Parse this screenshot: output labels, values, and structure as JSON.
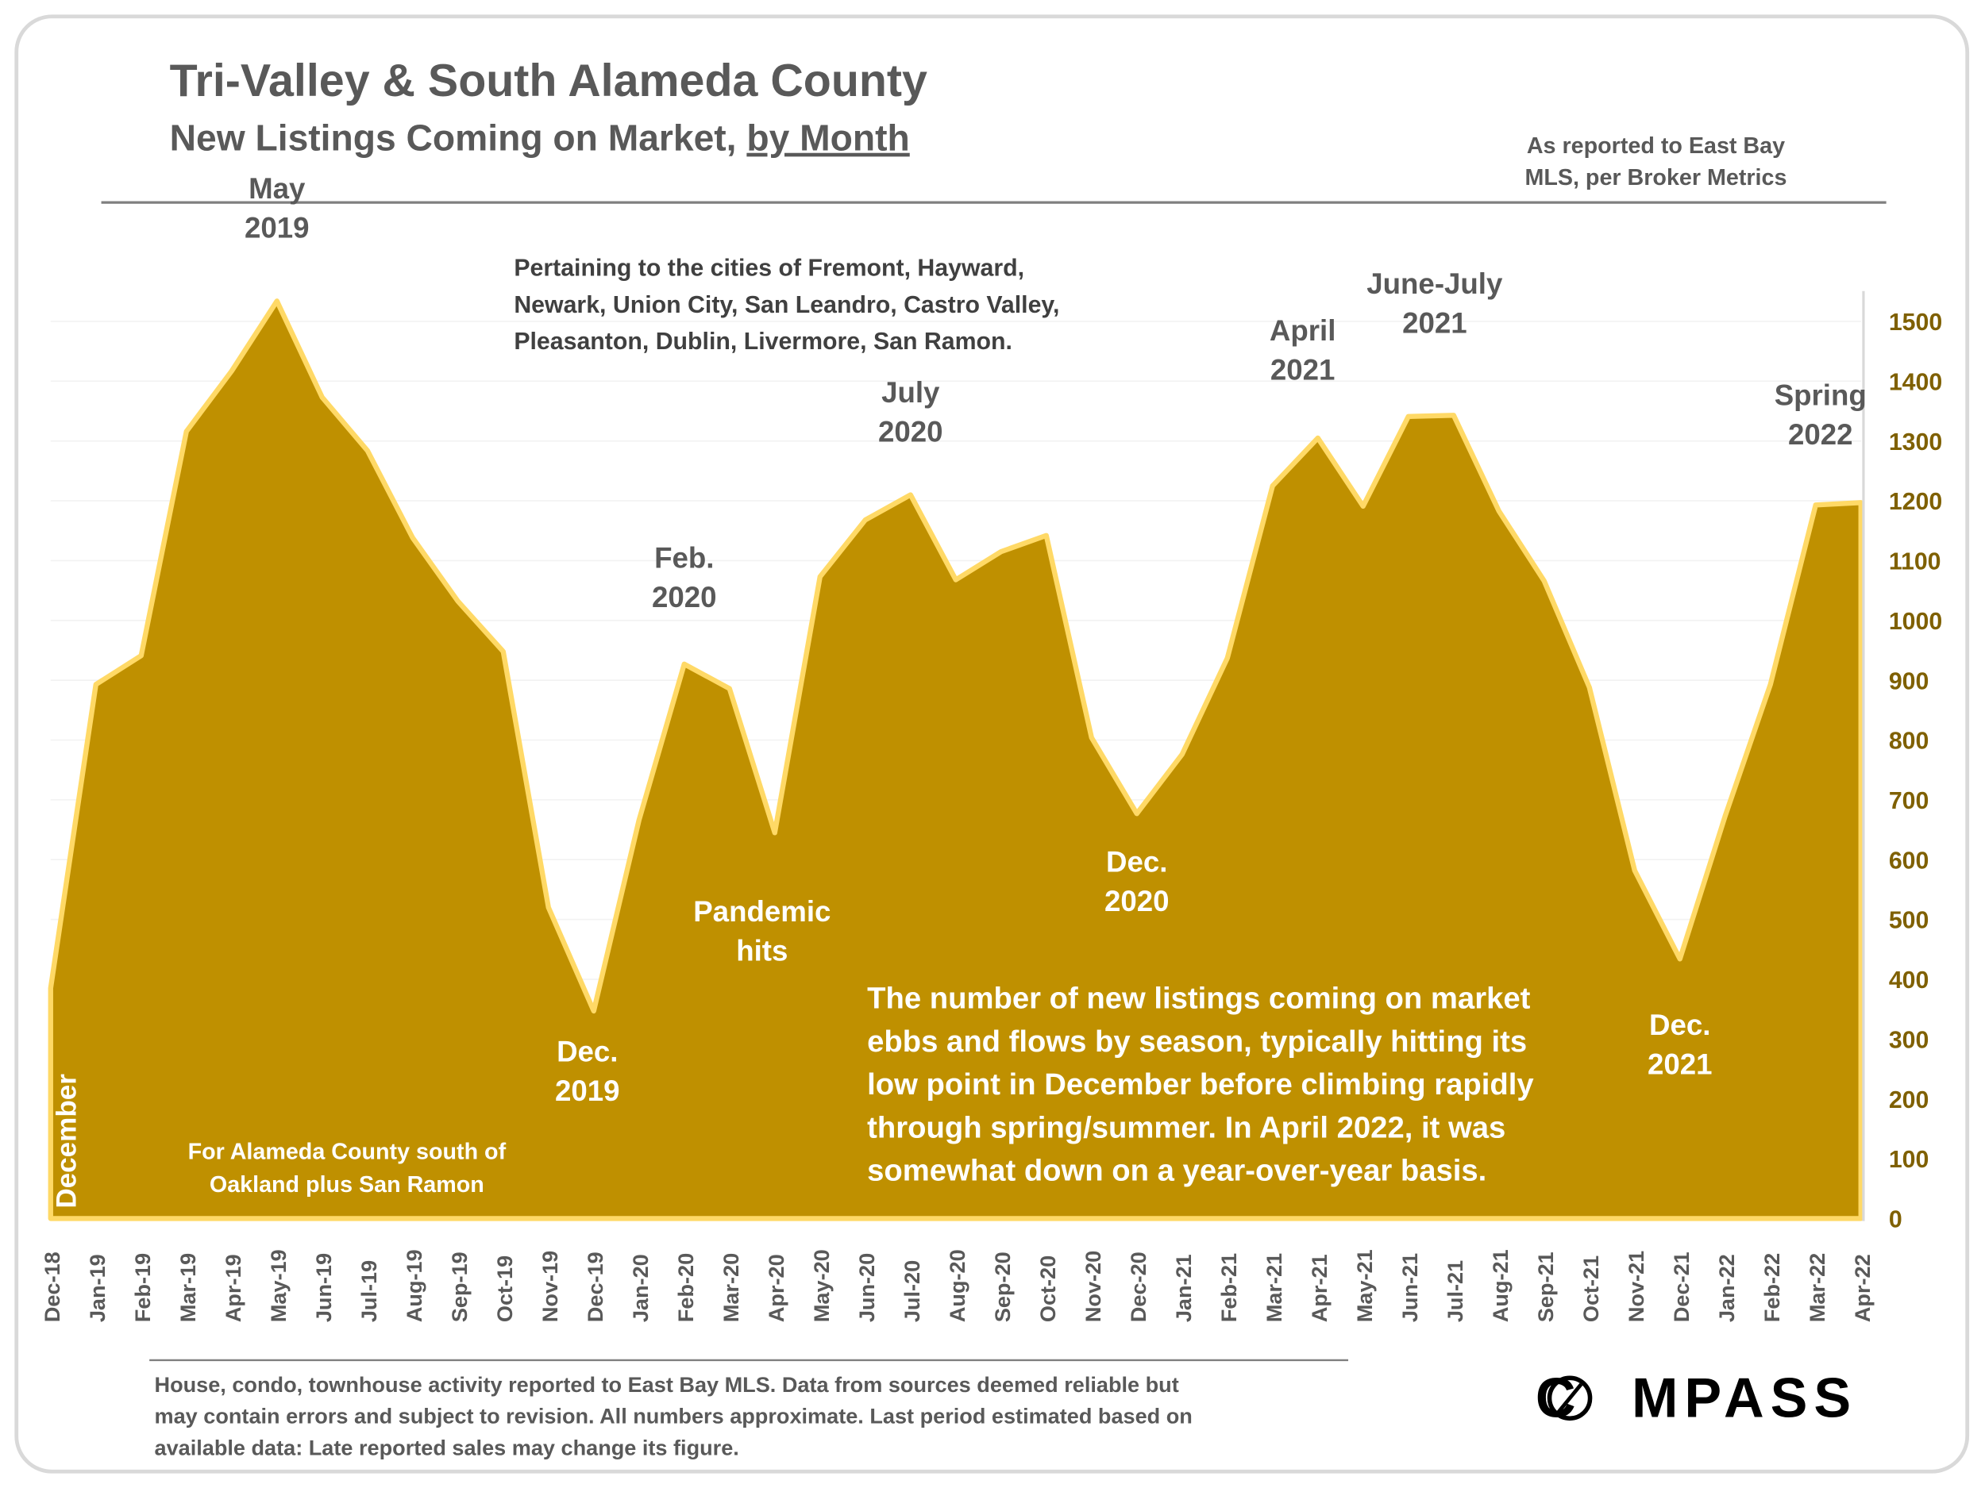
{
  "header": {
    "title": "Tri-Valley & South Alameda County",
    "subtitle_prefix": "New Listings Coming on Market, ",
    "subtitle_underlined": "by Month",
    "source_line1": "As reported to East Bay",
    "source_line2": "MLS, per Broker Metrics"
  },
  "notes": {
    "cities": [
      "Pertaining to the cities of Fremont, Hayward,",
      "Newark, Union City, San Leandro, Castro Valley,",
      "Pleasanton, Dublin, Livermore, San Ramon."
    ],
    "region": [
      "For Alameda County south of",
      "Oakland plus San Ramon"
    ],
    "december": "December",
    "summary": [
      "The number of new listings coming on market",
      "ebbs and flows by season, typically hitting its",
      "low point in December before climbing rapidly",
      "through spring/summer.  In April 2022, it was",
      "somewhat down on a year-over-year basis."
    ],
    "footer": [
      "House, condo, townhouse activity reported to East Bay MLS. Data from sources deemed reliable but",
      "may contain errors and subject to revision. All numbers approximate. Last period estimated based on",
      "available data: Late reported sales may change its figure."
    ],
    "logo": "COMPASS"
  },
  "colors": {
    "fill": "#BF9000",
    "line": "#FFD966",
    "text": "#595959",
    "axis_text": "#7F6000"
  },
  "chart_data": {
    "type": "area",
    "title": "Tri-Valley & South Alameda County",
    "categories": [
      "Dec-18",
      "Jan-19",
      "Feb-19",
      "Mar-19",
      "Apr-19",
      "May-19",
      "Jun-19",
      "Jul-19",
      "Aug-19",
      "Sep-19",
      "Oct-19",
      "Nov-19",
      "Dec-19",
      "Jan-20",
      "Feb-20",
      "Mar-20",
      "Apr-20",
      "May-20",
      "Jun-20",
      "Jul-20",
      "Aug-20",
      "Sep-20",
      "Oct-20",
      "Nov-20",
      "Dec-20",
      "Jan-21",
      "Feb-21",
      "Mar-21",
      "Apr-21",
      "May-21",
      "Jun-21",
      "Jul-21",
      "Aug-21",
      "Sep-21",
      "Oct-21",
      "Nov-21",
      "Dec-21",
      "Jan-22",
      "Feb-22",
      "Mar-22",
      "Apr-22"
    ],
    "values": [
      385,
      893,
      941,
      1316,
      1417,
      1534,
      1373,
      1284,
      1138,
      1032,
      948,
      520,
      347,
      666,
      927,
      886,
      645,
      1073,
      1168,
      1210,
      1068,
      1115,
      1142,
      804,
      677,
      776,
      937,
      1225,
      1305,
      1191,
      1341,
      1343,
      1183,
      1066,
      888,
      582,
      434,
      673,
      893,
      1193,
      1197
    ],
    "ylim": [
      0,
      1500
    ],
    "yticks": [
      0,
      100,
      200,
      300,
      400,
      500,
      600,
      700,
      800,
      900,
      1000,
      1100,
      1200,
      1300,
      1400,
      1500
    ],
    "y_axis_side": "right",
    "grid": true,
    "annotations": [
      {
        "lines": [
          "May",
          "2019"
        ],
        "at": "May-19",
        "color": "dark"
      },
      {
        "lines": [
          "Dec.",
          "2019"
        ],
        "at": "Dec-19",
        "color": "white"
      },
      {
        "lines": [
          "Feb.",
          "2020"
        ],
        "at": "Feb-20",
        "color": "dark"
      },
      {
        "lines": [
          "Pandemic",
          "hits"
        ],
        "at": "Apr-20",
        "color": "white"
      },
      {
        "lines": [
          "July",
          "2020"
        ],
        "at": "Jul-20",
        "color": "dark"
      },
      {
        "lines": [
          "Dec.",
          "2020"
        ],
        "at": "Dec-20",
        "color": "white"
      },
      {
        "lines": [
          "April",
          "2021"
        ],
        "at": "Apr-21",
        "color": "dark"
      },
      {
        "lines": [
          "June-July",
          "2021"
        ],
        "at": "Jul-21",
        "color": "dark"
      },
      {
        "lines": [
          "Dec.",
          "2021"
        ],
        "at": "Dec-21",
        "color": "white"
      },
      {
        "lines": [
          "Spring",
          "2022"
        ],
        "at": "Apr-22",
        "color": "dark"
      }
    ]
  }
}
